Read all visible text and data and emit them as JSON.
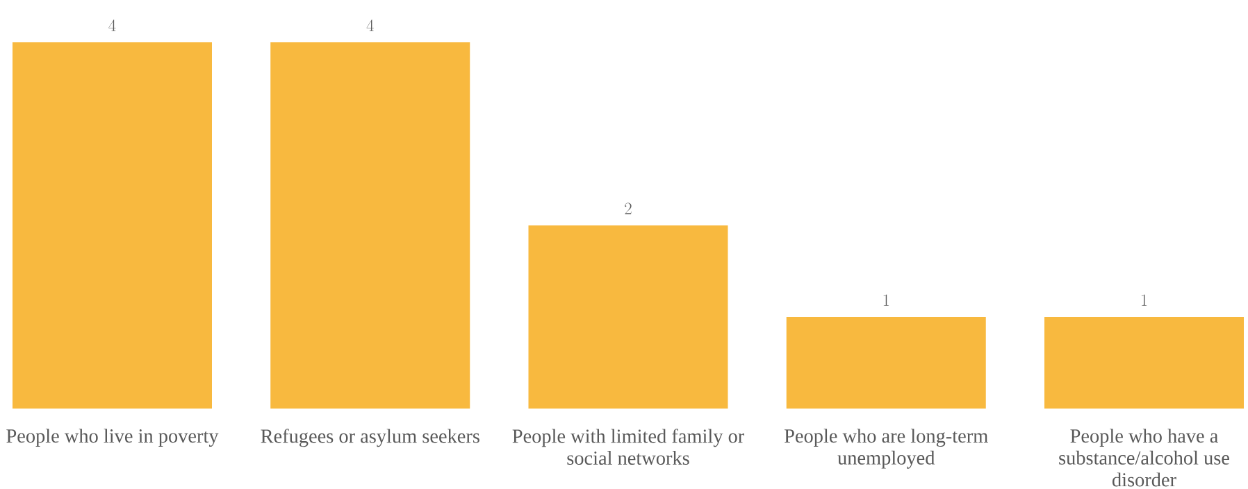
{
  "chart_data": {
    "type": "bar",
    "categories": [
      "People who live in poverty",
      "Refugees or asylum seekers",
      "People with limited family or social networks",
      "People who are long-term unemployed",
      "People who have a substance/alcohol use disorder"
    ],
    "values": [
      4,
      4,
      2,
      1,
      1
    ],
    "color": "#f8b93f",
    "data_labels": true
  }
}
